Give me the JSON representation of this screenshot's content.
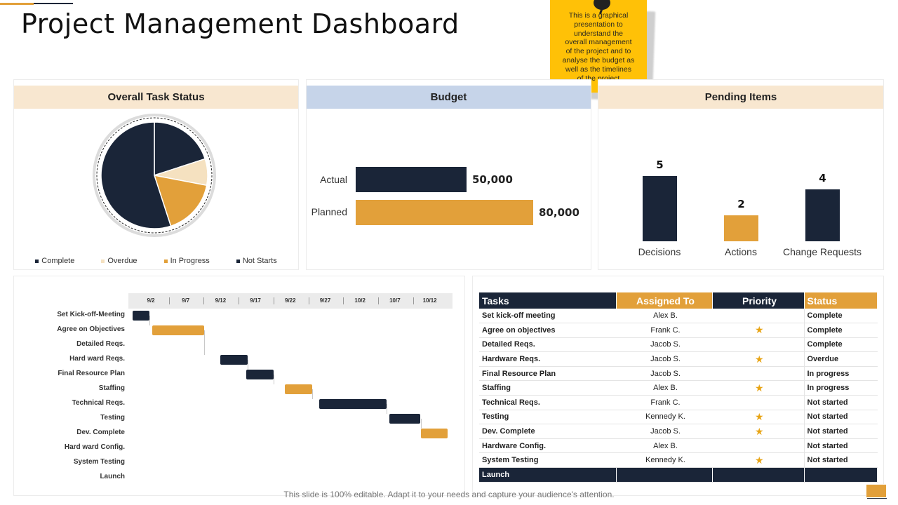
{
  "page": {
    "title": "Project Management Dashboard"
  },
  "note": {
    "lines": [
      "This is a graphical",
      "presentation to",
      "understand the",
      "overall management",
      "of the project and to",
      "analyse the budget as",
      "well as the timelines",
      "of the project"
    ]
  },
  "colors": {
    "navy": "#1a2538",
    "gold": "#e2a03a",
    "cream": "#f5e1c0",
    "cream_head": "#f8e7d0",
    "blue_head": "#c6d4e9",
    "note_yellow": "#ffc107"
  },
  "task_status": {
    "title": "Overall Task Status",
    "legend": [
      "Complete",
      "Overdue",
      "In Progress",
      "Not Starts"
    ]
  },
  "budget": {
    "title": "Budget"
  },
  "pending": {
    "title": "Pending Items"
  },
  "chart_data": [
    {
      "type": "pie",
      "title": "Overall Task Status",
      "labels": [
        "Complete",
        "Overdue",
        "In Progress",
        "Not Starts"
      ],
      "values": [
        20,
        8,
        17,
        55
      ],
      "colors": [
        "#1a2538",
        "#f5e1c0",
        "#e2a03a",
        "#1a2538"
      ]
    },
    {
      "type": "bar",
      "orientation": "horizontal",
      "title": "Budget",
      "categories": [
        "Actual",
        "Planned"
      ],
      "values": [
        50000,
        80000
      ],
      "value_labels": [
        "50,000",
        "80,000"
      ],
      "colors": [
        "#1a2538",
        "#e2a03a"
      ]
    },
    {
      "type": "bar",
      "title": "Pending Items",
      "categories": [
        "Decisions",
        "Actions",
        "Change Requests"
      ],
      "values": [
        5,
        2,
        4
      ],
      "colors": [
        "#1a2538",
        "#e2a03a",
        "#1a2538"
      ]
    }
  ],
  "gantt": {
    "dates": [
      "9/2",
      "9/7",
      "9/12",
      "9/17",
      "9/22",
      "9/27",
      "10/2",
      "10/7",
      "10/12"
    ],
    "tasks": [
      "Set Kick-off-Meeting",
      "Agree on Objectives",
      "Detailed Reqs.",
      "Hard ward Reqs.",
      "Final Resource Plan",
      "Staffing",
      "Technical Reqs.",
      "Testing",
      "Dev. Complete",
      "Hard ward Config.",
      "System Testing",
      "Launch"
    ],
    "bars": [
      {
        "row": 0,
        "start": 0.2,
        "end": 2.6,
        "color": "navy"
      },
      {
        "row": 1,
        "start": 3.0,
        "end": 10.5,
        "color": "gold"
      },
      {
        "row": 3,
        "start": 12.8,
        "end": 16.7,
        "color": "navy"
      },
      {
        "row": 4,
        "start": 16.5,
        "end": 20.4,
        "color": "navy"
      },
      {
        "row": 5,
        "start": 22.0,
        "end": 26.0,
        "color": "gold"
      },
      {
        "row": 6,
        "start": 27.0,
        "end": 36.6,
        "color": "navy"
      },
      {
        "row": 7,
        "start": 37.0,
        "end": 41.5,
        "color": "navy"
      },
      {
        "row": 8,
        "start": 41.5,
        "end": 45.4,
        "color": "gold"
      }
    ]
  },
  "tasks_table": {
    "headers": {
      "task": "Tasks",
      "assigned": "Assigned  To",
      "priority": "Priority",
      "status": "Status"
    },
    "rows": [
      {
        "task": "Set kick-off meeting",
        "assigned": "Alex B.",
        "priority": "",
        "status": "Complete"
      },
      {
        "task": "Agree on objectives",
        "assigned": "Frank C.",
        "priority": "★",
        "status": "Complete"
      },
      {
        "task": "Detailed Reqs.",
        "assigned": "Jacob S.",
        "priority": "",
        "status": "Complete"
      },
      {
        "task": "Hardware Reqs.",
        "assigned": "Jacob S.",
        "priority": "★",
        "status": "Overdue"
      },
      {
        "task": "Final Resource Plan",
        "assigned": "Jacob S.",
        "priority": "",
        "status": "In progress"
      },
      {
        "task": "Staffing",
        "assigned": "Alex B.",
        "priority": "★",
        "status": "In progress"
      },
      {
        "task": "Technical Reqs.",
        "assigned": "Frank C.",
        "priority": "",
        "status": "Not started"
      },
      {
        "task": "Testing",
        "assigned": "Kennedy K.",
        "priority": "★",
        "status": "Not started"
      },
      {
        "task": "Dev. Complete",
        "assigned": "Jacob S.",
        "priority": "★",
        "status": "Not started"
      },
      {
        "task": "Hardware Config.",
        "assigned": "Alex B.",
        "priority": "",
        "status": "Not started"
      },
      {
        "task": "System Testing",
        "assigned": "Kennedy K.",
        "priority": "★",
        "status": "Not started"
      },
      {
        "task": "Launch",
        "assigned": "",
        "priority": "",
        "status": ""
      }
    ]
  },
  "footer": {
    "text": "This slide is 100% editable. Adapt it to your needs and capture your audience's attention."
  }
}
